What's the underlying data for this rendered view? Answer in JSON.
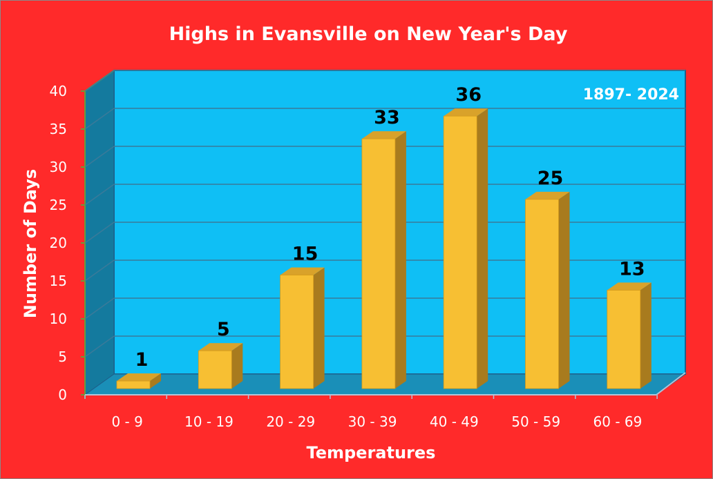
{
  "chart_data": {
    "type": "bar",
    "title": "Highs in Evansville on New Year's Day",
    "xlabel": "Temperatures",
    "ylabel": "Number of Days",
    "annotation": "1897- 2024",
    "categories": [
      "0 - 9",
      "10 - 19",
      "20 - 29",
      "30 - 39",
      "40 - 49",
      "50 - 59",
      "60 - 69"
    ],
    "values": [
      1,
      5,
      15,
      33,
      36,
      25,
      13
    ],
    "data_labels": [
      "1",
      "5",
      "15",
      "33",
      "36",
      "25",
      "13"
    ],
    "ylim": [
      0,
      40
    ],
    "yticks": [
      "0",
      "5",
      "10",
      "15",
      "20",
      "25",
      "30",
      "35",
      "40"
    ],
    "grid": true,
    "colors": {
      "background": "#ff2a2a",
      "back_wall": "#0fbff5",
      "side_wall": "#147a9e",
      "floor": "#1a8fb8",
      "bar_front": "#f7bf33",
      "bar_side": "#a87b1e",
      "bar_top": "#d9a22a",
      "grid": "#3a7a9a"
    }
  }
}
